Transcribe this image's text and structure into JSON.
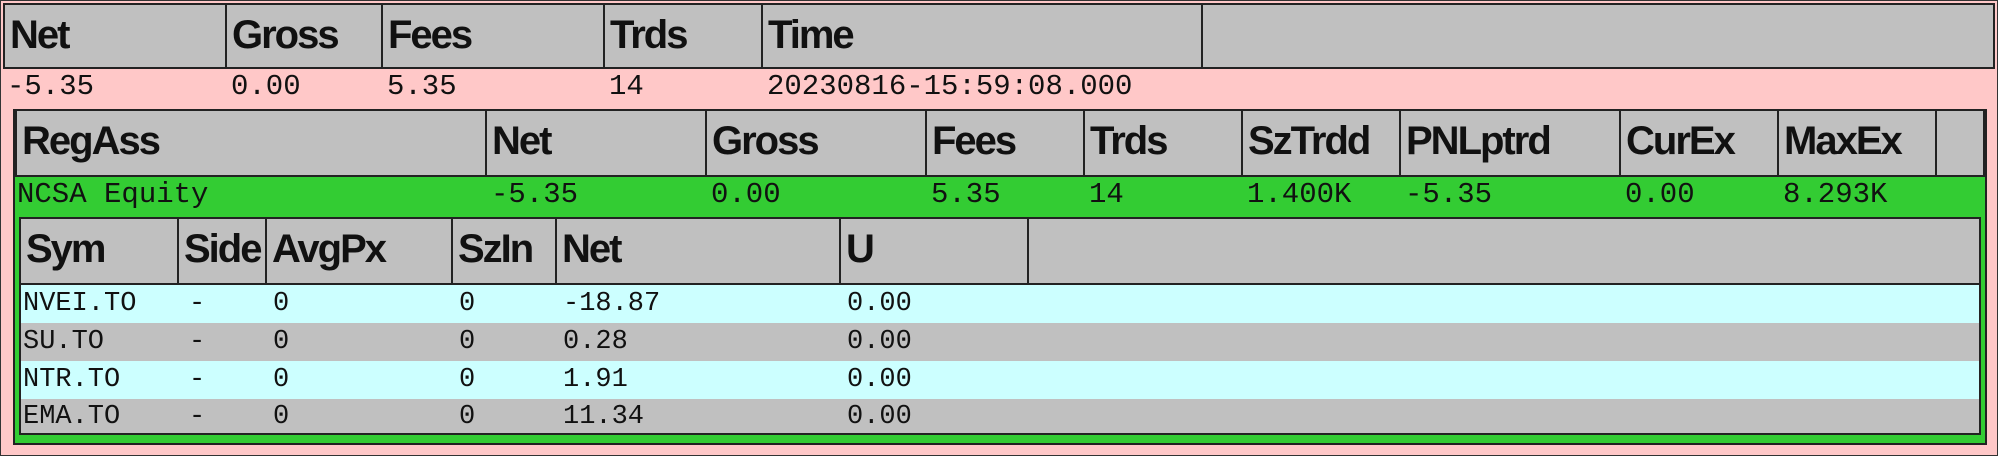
{
  "summary": {
    "headers": [
      "Net",
      "Gross",
      "Fees",
      "Trds",
      "Time"
    ],
    "row": [
      "-5.35",
      "0.00",
      "5.35",
      "14",
      "20230816-15:59:08.000"
    ]
  },
  "regass": {
    "headers": [
      "RegAss",
      "Net",
      "Gross",
      "Fees",
      "Trds",
      "SzTrdd",
      "PNLptrd",
      "CurEx",
      "MaxEx"
    ],
    "row": [
      "NCSA Equity",
      "-5.35",
      "0.00",
      "5.35",
      "14",
      "1.400K",
      "-5.35",
      "0.00",
      "8.293K"
    ]
  },
  "symbols": {
    "headers": [
      "Sym",
      "Side",
      "AvgPx",
      "SzIn",
      "Net",
      "U"
    ],
    "rows": [
      [
        "NVEI.TO",
        "-",
        "0",
        "0",
        "-18.87",
        "0.00"
      ],
      [
        "SU.TO",
        "-",
        "0",
        "0",
        "0.28",
        "0.00"
      ],
      [
        "NTR.TO",
        "-",
        "0",
        "0",
        "1.91",
        "0.00"
      ],
      [
        "EMA.TO",
        "-",
        "0",
        "0",
        "11.34",
        "0.00"
      ]
    ]
  },
  "colors": {
    "summary_row_bg": "#ffc8c8",
    "group_row_bg": "#33cc33",
    "alt_row_cyan": "#ccffff",
    "alt_row_gray": "#c0c0c0",
    "header_bg": "#c0c0c0"
  }
}
